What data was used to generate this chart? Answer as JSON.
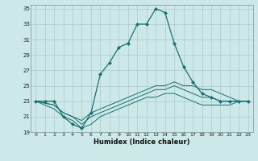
{
  "title": "",
  "xlabel": "Humidex (Indice chaleur)",
  "xlim": [
    -0.5,
    23.5
  ],
  "ylim": [
    19,
    35.5
  ],
  "yticks": [
    19,
    21,
    23,
    25,
    27,
    29,
    31,
    33,
    35
  ],
  "xticks": [
    0,
    1,
    2,
    3,
    4,
    5,
    6,
    7,
    8,
    9,
    10,
    11,
    12,
    13,
    14,
    15,
    16,
    17,
    18,
    19,
    20,
    21,
    22,
    23
  ],
  "background_color": "#cce8e8",
  "grid_color": "#aacccc",
  "line_color": "#1a7070",
  "series_main": {
    "x": [
      0,
      1,
      2,
      3,
      4,
      5,
      6,
      7,
      8,
      9,
      10,
      11,
      12,
      13,
      14,
      15,
      16,
      17,
      18,
      19,
      20,
      21,
      22,
      23
    ],
    "y": [
      23,
      23,
      23,
      21,
      20,
      19.5,
      21.5,
      26.5,
      28,
      30,
      30.5,
      33,
      33,
      35,
      34.5,
      30.5,
      27.5,
      25.5,
      24,
      23.5,
      23,
      23,
      23,
      23
    ]
  },
  "series_line2": {
    "x": [
      0,
      2,
      3,
      4,
      5,
      6,
      7,
      8,
      9,
      10,
      11,
      12,
      13,
      14,
      15,
      16,
      17,
      18,
      19,
      20,
      21,
      22,
      23
    ],
    "y": [
      23,
      22.5,
      21.5,
      21,
      20.5,
      21.5,
      22,
      22.5,
      23,
      23.5,
      24,
      24.5,
      25,
      25,
      25.5,
      25,
      25,
      24.5,
      24.5,
      24,
      23.5,
      23,
      23
    ]
  },
  "series_line3": {
    "x": [
      0,
      2,
      3,
      4,
      5,
      6,
      7,
      8,
      9,
      10,
      11,
      12,
      13,
      14,
      15,
      16,
      17,
      18,
      19,
      20,
      21,
      22,
      23
    ],
    "y": [
      23,
      22.5,
      21.5,
      21,
      20,
      21,
      21.5,
      22,
      22.5,
      23,
      23.5,
      24,
      24.5,
      24.5,
      25,
      24.5,
      24,
      23.5,
      23.5,
      23,
      23,
      23,
      23
    ]
  },
  "series_line4": {
    "x": [
      0,
      2,
      3,
      4,
      5,
      6,
      7,
      8,
      9,
      10,
      11,
      12,
      13,
      14,
      15,
      16,
      17,
      18,
      19,
      20,
      21,
      22,
      23
    ],
    "y": [
      23,
      22,
      21,
      20.5,
      19.5,
      20,
      21,
      21.5,
      22,
      22.5,
      23,
      23.5,
      23.5,
      24,
      24,
      23.5,
      23,
      22.5,
      22.5,
      22.5,
      22.5,
      23,
      23
    ]
  }
}
